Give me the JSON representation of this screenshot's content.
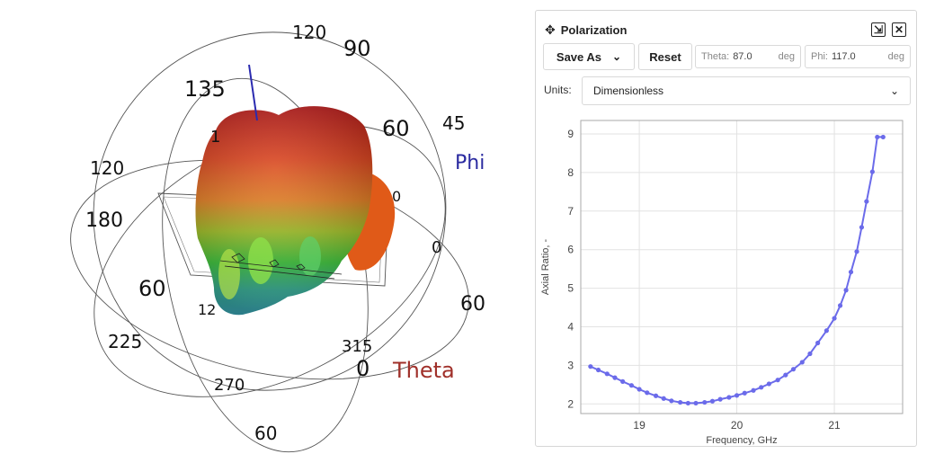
{
  "viewport": {
    "labels": {
      "theta": "Theta",
      "phi": "Phi",
      "t120top": "120",
      "t90": "90",
      "t135": "135",
      "t60a": "60",
      "t45": "45",
      "t1": "1",
      "t120left": "120",
      "t180": "180",
      "t0a": "0",
      "t0b": "0",
      "t60b": "60",
      "t60c": "60",
      "t225": "225",
      "t12": "12",
      "t315": "315",
      "t0c": "0",
      "t270": "270",
      "t60d": "60"
    },
    "colors": {
      "theta": "#a0302a",
      "phi": "#2a2aa0",
      "phi_axis": "#2b2bb0"
    }
  },
  "panel": {
    "title": "Polarization",
    "move_icon": "move-icon",
    "collapse_icon": "collapse-icon",
    "close_icon": "close-icon",
    "save_as_label": "Save As",
    "reset_label": "Reset",
    "theta_label": "Theta:",
    "theta_value": "87.0",
    "theta_unit": "deg",
    "phi_label": "Phi:",
    "phi_value": "117.0",
    "phi_unit": "deg",
    "units_label": "Units:",
    "units_value": "Dimensionless"
  },
  "chart_data": {
    "type": "line",
    "title": "",
    "xlabel": "Frequency, GHz",
    "ylabel": "Axial Ratio, -",
    "xlim": [
      18.4,
      21.7
    ],
    "ylim": [
      1.75,
      9.35
    ],
    "xticks": [
      19,
      20,
      21
    ],
    "yticks": [
      2,
      3,
      4,
      5,
      6,
      7,
      8,
      9
    ],
    "line_color": "#6b6bea",
    "series": [
      {
        "name": "Axial Ratio",
        "x": [
          18.5,
          18.58,
          18.67,
          18.75,
          18.83,
          18.92,
          19.0,
          19.08,
          19.17,
          19.25,
          19.33,
          19.42,
          19.5,
          19.58,
          19.67,
          19.75,
          19.83,
          19.92,
          20.0,
          20.08,
          20.17,
          20.25,
          20.33,
          20.42,
          20.5,
          20.58,
          20.67,
          20.75,
          20.83,
          20.92,
          21.0,
          21.06,
          21.12,
          21.17,
          21.23,
          21.28,
          21.33,
          21.39,
          21.44,
          21.5
        ],
        "y": [
          2.97,
          2.88,
          2.78,
          2.68,
          2.58,
          2.48,
          2.38,
          2.29,
          2.21,
          2.14,
          2.08,
          2.04,
          2.02,
          2.02,
          2.04,
          2.07,
          2.12,
          2.17,
          2.22,
          2.28,
          2.35,
          2.43,
          2.52,
          2.62,
          2.75,
          2.9,
          3.08,
          3.3,
          3.58,
          3.9,
          4.22,
          4.55,
          4.95,
          5.42,
          5.95,
          6.58,
          7.25,
          8.02,
          8.92,
          8.92
        ]
      }
    ]
  }
}
